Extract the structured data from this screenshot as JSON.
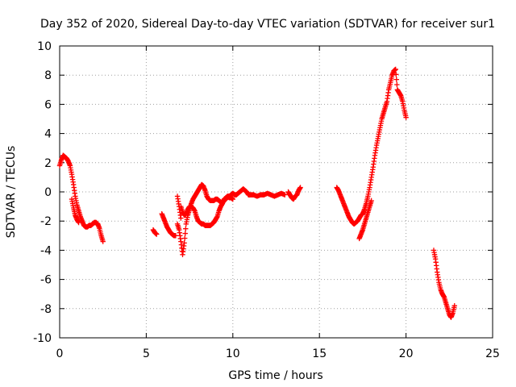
{
  "chart_data": {
    "type": "scatter",
    "title": "Day 352 of 2020, Sidereal Day-to-day VTEC variation (SDTVAR) for receiver sur1",
    "xlabel": "GPS time / hours",
    "ylabel": "SDTVAR / TECUs",
    "xlim": [
      0,
      25
    ],
    "ylim": [
      -10,
      10
    ],
    "xticks": [
      0,
      5,
      10,
      15,
      20,
      25
    ],
    "yticks": [
      -10,
      -8,
      -6,
      -4,
      -2,
      0,
      2,
      4,
      6,
      8,
      10
    ],
    "grid": true,
    "marker": "plus",
    "color": "#ff0000",
    "series": [
      {
        "name": "seg1",
        "x": [
          0.0,
          0.1,
          0.2,
          0.3,
          0.4,
          0.5,
          0.6,
          0.7,
          0.8,
          0.9,
          1.0,
          1.1,
          1.2,
          1.3,
          1.4,
          1.5,
          1.6,
          1.7,
          1.8,
          1.9,
          2.0,
          2.1,
          2.2,
          2.3,
          2.4,
          2.5
        ],
        "y": [
          1.8,
          2.2,
          2.5,
          2.4,
          2.3,
          2.1,
          1.8,
          1.2,
          0.5,
          -0.3,
          -0.9,
          -1.3,
          -1.7,
          -2.0,
          -2.3,
          -2.4,
          -2.4,
          -2.3,
          -2.3,
          -2.2,
          -2.1,
          -2.1,
          -2.2,
          -2.5,
          -3.0,
          -3.4
        ]
      },
      {
        "name": "seg1b",
        "x": [
          0.7,
          0.8,
          0.9,
          1.0,
          1.1
        ],
        "y": [
          -0.5,
          -1.1,
          -1.6,
          -1.9,
          -2.1
        ]
      },
      {
        "name": "seg2",
        "x": [
          5.4,
          5.5,
          5.6
        ],
        "y": [
          -2.6,
          -2.8,
          -2.9
        ]
      },
      {
        "name": "seg3",
        "x": [
          5.9,
          6.0,
          6.1,
          6.2,
          6.3,
          6.4,
          6.5,
          6.6,
          6.7
        ],
        "y": [
          -1.5,
          -1.8,
          -2.1,
          -2.4,
          -2.6,
          -2.8,
          -2.9,
          -3.0,
          -3.0
        ]
      },
      {
        "name": "seg4",
        "x": [
          6.8,
          6.9,
          7.0,
          7.1,
          7.2,
          7.3,
          7.4,
          7.5,
          7.6,
          7.7,
          7.8,
          7.9,
          8.0,
          8.1,
          8.2,
          8.3,
          8.4,
          8.5,
          8.6,
          8.7,
          8.8,
          8.9,
          9.0,
          9.1,
          9.2,
          9.3,
          9.4,
          9.5,
          9.6,
          9.7,
          9.8,
          9.9,
          10.0,
          10.1,
          10.2,
          10.3,
          10.4,
          10.5,
          10.6,
          10.7,
          10.8,
          10.9,
          11.0,
          11.2,
          11.4,
          11.6,
          11.8,
          12.0,
          12.2,
          12.4,
          12.6,
          12.8,
          13.0
        ],
        "y": [
          -2.2,
          -2.6,
          -3.4,
          -4.3,
          -3.5,
          -2.2,
          -1.6,
          -1.2,
          -0.8,
          -0.5,
          -0.3,
          -0.1,
          0.1,
          0.3,
          0.5,
          0.4,
          0.1,
          -0.3,
          -0.5,
          -0.6,
          -0.6,
          -0.6,
          -0.5,
          -0.5,
          -0.6,
          -0.7,
          -0.7,
          -0.6,
          -0.5,
          -0.3,
          -0.3,
          -0.2,
          -0.1,
          -0.2,
          -0.2,
          -0.1,
          0.0,
          0.1,
          0.2,
          0.1,
          0.0,
          -0.2,
          -0.2,
          -0.2,
          -0.3,
          -0.2,
          -0.2,
          -0.1,
          -0.2,
          -0.3,
          -0.2,
          -0.1,
          -0.2
        ]
      },
      {
        "name": "seg4b",
        "x": [
          7.0,
          7.1,
          7.2,
          7.3,
          7.4,
          7.5,
          7.6,
          7.7,
          7.8,
          7.9,
          8.0,
          8.1,
          8.2,
          8.3,
          8.4,
          8.5,
          8.6,
          8.7,
          8.8,
          8.9,
          9.0,
          9.1,
          9.2,
          9.3,
          9.4,
          9.5,
          9.6,
          9.7,
          9.8,
          9.9,
          10.0
        ],
        "y": [
          -1.0,
          -1.4,
          -1.6,
          -1.5,
          -1.2,
          -1.0,
          -1.0,
          -1.1,
          -1.3,
          -1.7,
          -2.0,
          -2.1,
          -2.2,
          -2.2,
          -2.3,
          -2.3,
          -2.3,
          -2.3,
          -2.2,
          -2.1,
          -1.9,
          -1.7,
          -1.3,
          -1.0,
          -0.8,
          -0.5,
          -0.4,
          -0.3,
          -0.4,
          -0.4,
          -0.5
        ]
      },
      {
        "name": "seg4c",
        "x": [
          6.8,
          6.9,
          7.0
        ],
        "y": [
          -0.3,
          -1.0,
          -1.8
        ]
      },
      {
        "name": "seg5",
        "x": [
          13.2,
          13.3,
          13.4,
          13.5,
          13.6,
          13.7,
          13.8,
          13.9
        ],
        "y": [
          0.0,
          -0.2,
          -0.4,
          -0.5,
          -0.3,
          -0.2,
          0.1,
          0.3
        ]
      },
      {
        "name": "seg6",
        "x": [
          16.0,
          16.1,
          16.2,
          16.3,
          16.4,
          16.5,
          16.6,
          16.7,
          16.8,
          16.9,
          17.0,
          17.1,
          17.2,
          17.3,
          17.4,
          17.5,
          17.6,
          17.7,
          17.8,
          17.9,
          18.0,
          18.1,
          18.2,
          18.3,
          18.4,
          18.5,
          18.6,
          18.7,
          18.8,
          18.9,
          19.0,
          19.1,
          19.2,
          19.3,
          19.4,
          19.5,
          19.6,
          19.7,
          19.8,
          19.9,
          20.0
        ],
        "y": [
          0.3,
          0.1,
          -0.2,
          -0.5,
          -0.8,
          -1.1,
          -1.4,
          -1.7,
          -1.9,
          -2.1,
          -2.2,
          -2.1,
          -2.0,
          -1.8,
          -1.6,
          -1.5,
          -1.2,
          -0.8,
          -0.3,
          0.3,
          1.0,
          1.7,
          2.5,
          3.2,
          3.8,
          4.4,
          5.0,
          5.4,
          5.8,
          6.2,
          7.0,
          7.5,
          8.0,
          8.3,
          8.4,
          7.0,
          6.8,
          6.6,
          6.2,
          5.6,
          5.1
        ]
      },
      {
        "name": "seg6b",
        "x": [
          17.3,
          17.4,
          17.5,
          17.6,
          17.7,
          17.8,
          17.9,
          18.0
        ],
        "y": [
          -3.2,
          -2.9,
          -2.6,
          -2.2,
          -1.8,
          -1.4,
          -1.0,
          -0.6
        ]
      },
      {
        "name": "seg7",
        "x": [
          21.6,
          21.7,
          21.8,
          21.9,
          22.0,
          22.1,
          22.2,
          22.3,
          22.4,
          22.5,
          22.6,
          22.7,
          22.8
        ],
        "y": [
          -4.0,
          -4.6,
          -5.5,
          -6.2,
          -6.7,
          -7.0,
          -7.2,
          -7.6,
          -8.0,
          -8.4,
          -8.6,
          -8.3,
          -7.8
        ]
      }
    ]
  }
}
